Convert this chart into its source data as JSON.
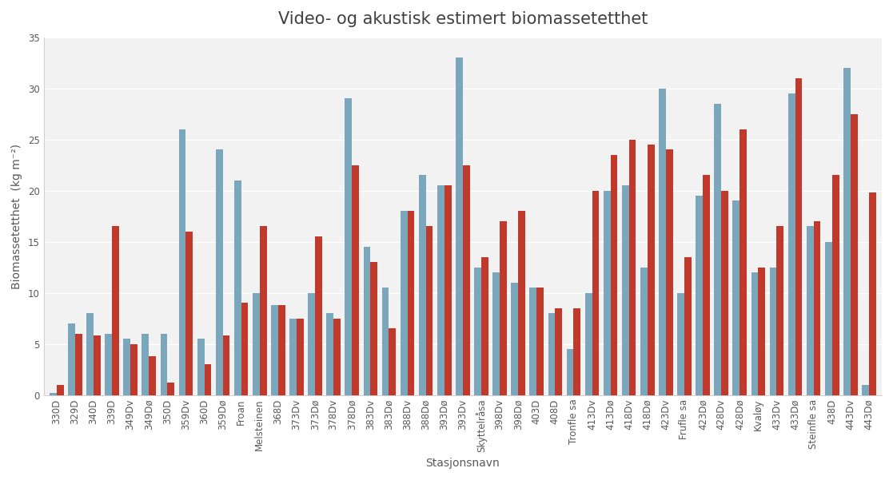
{
  "title": "Video- og akustisk estimert biomassetetthet",
  "xlabel": "Stasjonsnavn",
  "ylabel": "Biomassetetthet  (kg m⁻²)",
  "categories": [
    "330D",
    "329D",
    "340D",
    "339D",
    "349Dv",
    "349Dø",
    "350D",
    "359Dv",
    "360D",
    "359Dø",
    "Froan",
    "Melsteinen",
    "368D",
    "373Dv",
    "373Dø",
    "378Dv",
    "378Dø",
    "383Dv",
    "383Dø",
    "388Dv",
    "388Dø",
    "393Dø",
    "393Dv",
    "Skyttelråsa",
    "398Dv",
    "398Dø",
    "403D",
    "408D",
    "Tronfle sa",
    "413Dv",
    "413Dø",
    "418Dv",
    "418Dø",
    "423Dv",
    "Frufle sa",
    "423Dø",
    "428Dv",
    "428Dø",
    "Kvaløy",
    "433Dv",
    "433Dø",
    "Steinfle sa",
    "438D",
    "443Dv",
    "443Dø"
  ],
  "video_values": [
    1.0,
    6.0,
    5.8,
    16.5,
    5.0,
    3.8,
    1.2,
    16.0,
    3.0,
    5.8,
    9.0,
    16.5,
    8.8,
    7.5,
    15.5,
    7.5,
    22.5,
    13.0,
    6.5,
    18.0,
    16.5,
    20.5,
    22.5,
    13.5,
    17.0,
    18.0,
    10.5,
    8.5,
    8.5,
    20.0,
    23.5,
    25.0,
    24.5,
    24.0,
    13.5,
    21.5,
    20.0,
    26.0,
    12.5,
    16.5,
    31.0,
    17.0,
    21.5,
    27.5,
    19.8
  ],
  "acoustic_values": [
    0.2,
    7.0,
    8.0,
    6.0,
    5.5,
    6.0,
    6.0,
    26.0,
    5.5,
    24.0,
    21.0,
    10.0,
    8.8,
    7.5,
    10.0,
    8.0,
    29.0,
    14.5,
    10.5,
    18.0,
    21.5,
    20.5,
    33.0,
    12.5,
    12.0,
    11.0,
    10.5,
    8.0,
    4.5,
    10.0,
    20.0,
    20.5,
    12.5,
    30.0,
    10.0,
    19.5,
    28.5,
    19.0,
    12.0,
    12.5,
    29.5,
    16.5,
    15.0,
    32.0,
    1.0
  ],
  "video_color": "#c0392b",
  "acoustic_color": "#7ba7bc",
  "ylim": [
    0,
    35
  ],
  "yticks": [
    0,
    5,
    10,
    15,
    20,
    25,
    30,
    35
  ],
  "bar_width": 0.38,
  "title_fontsize": 15,
  "axis_fontsize": 10,
  "tick_fontsize": 8.5,
  "background_color": "#ffffff",
  "plot_bg_color": "#f2f2f2",
  "grid_color": "#ffffff",
  "spine_color": "#d0d0d0"
}
